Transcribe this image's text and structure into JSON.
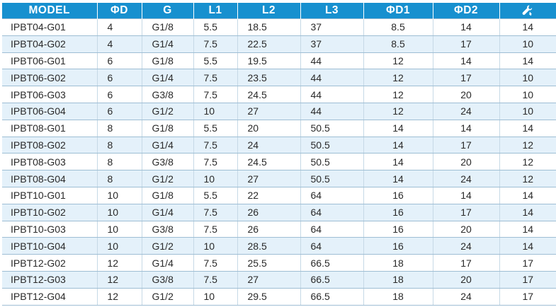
{
  "table": {
    "headers": [
      "MODEL",
      "ΦD",
      "G",
      "L1",
      "L2",
      "L3",
      "ΦD1",
      "ΦD2"
    ],
    "wrench_header_icon": "wrench-icon",
    "colors": {
      "header_bg": "#1790cf",
      "stripe": "#e4f1fa"
    },
    "rows": [
      [
        "IPBT04-G01",
        "4",
        "G1/8",
        "5.5",
        "18.5",
        "37",
        "8.5",
        "14",
        "14"
      ],
      [
        "IPBT04-G02",
        "4",
        "G1/4",
        "7.5",
        "22.5",
        "37",
        "8.5",
        "17",
        "10"
      ],
      [
        "IPBT06-G01",
        "6",
        "G1/8",
        "5.5",
        "19.5",
        "44",
        "12",
        "14",
        "14"
      ],
      [
        "IPBT06-G02",
        "6",
        "G1/4",
        "7.5",
        "23.5",
        "44",
        "12",
        "17",
        "10"
      ],
      [
        "IPBT06-G03",
        "6",
        "G3/8",
        "7.5",
        "24.5",
        "44",
        "12",
        "20",
        "10"
      ],
      [
        "IPBT06-G04",
        "6",
        "G1/2",
        "10",
        "27",
        "44",
        "12",
        "24",
        "10"
      ],
      [
        "IPBT08-G01",
        "8",
        "G1/8",
        "5.5",
        "20",
        "50.5",
        "14",
        "14",
        "14"
      ],
      [
        "IPBT08-G02",
        "8",
        "G1/4",
        "7.5",
        "24",
        "50.5",
        "14",
        "17",
        "12"
      ],
      [
        "IPBT08-G03",
        "8",
        "G3/8",
        "7.5",
        "24.5",
        "50.5",
        "14",
        "20",
        "12"
      ],
      [
        "IPBT08-G04",
        "8",
        "G1/2",
        "10",
        "27",
        "50.5",
        "14",
        "24",
        "12"
      ],
      [
        "IPBT10-G01",
        "10",
        "G1/8",
        "5.5",
        "22",
        "64",
        "16",
        "14",
        "14"
      ],
      [
        "IPBT10-G02",
        "10",
        "G1/4",
        "7.5",
        "26",
        "64",
        "16",
        "17",
        "14"
      ],
      [
        "IPBT10-G03",
        "10",
        "G3/8",
        "7.5",
        "26",
        "64",
        "16",
        "20",
        "14"
      ],
      [
        "IPBT10-G04",
        "10",
        "G1/2",
        "10",
        "28.5",
        "64",
        "16",
        "24",
        "14"
      ],
      [
        "IPBT12-G02",
        "12",
        "G1/4",
        "7.5",
        "25.5",
        "66.5",
        "18",
        "17",
        "17"
      ],
      [
        "IPBT12-G03",
        "12",
        "G3/8",
        "7.5",
        "27",
        "66.5",
        "18",
        "20",
        "17"
      ],
      [
        "IPBT12-G04",
        "12",
        "G1/2",
        "10",
        "29.5",
        "66.5",
        "18",
        "24",
        "17"
      ]
    ]
  }
}
